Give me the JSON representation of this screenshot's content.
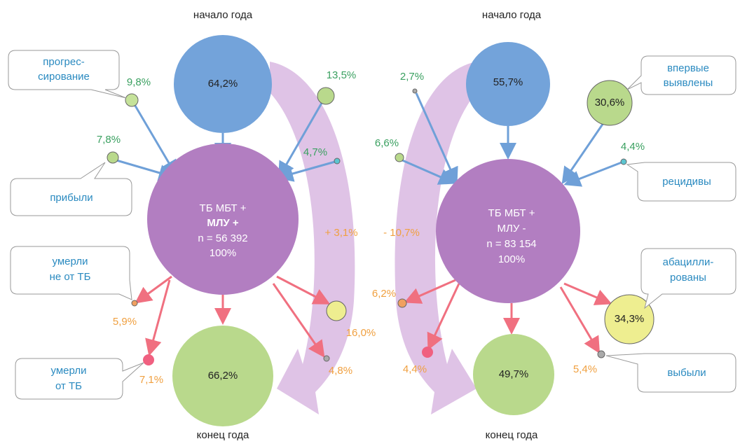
{
  "left": {
    "start_label": "начало года",
    "end_label": "конец года",
    "start": "64,2%",
    "end": "66,2%",
    "center": [
      "ТБ МБТ +",
      "МЛУ +",
      "n = 56 392",
      "100%"
    ],
    "net_change": "+ 3,1%",
    "inflows": [
      {
        "value": "9,8%",
        "label": [
          "прогрес-",
          "сирование"
        ]
      },
      {
        "value": "7,8%",
        "label": [
          "прибыли"
        ]
      },
      {
        "value": "13,5%"
      },
      {
        "value": "4,7%"
      }
    ],
    "outflows": [
      {
        "value": "5,9%",
        "label": [
          "умерли",
          "не от ТБ"
        ]
      },
      {
        "value": "7,1%",
        "label": [
          "умерли",
          "от ТБ"
        ]
      },
      {
        "value": "16,0%"
      },
      {
        "value": "4,8%"
      }
    ]
  },
  "right": {
    "start_label": "начало года",
    "end_label": "конец года",
    "start": "55,7%",
    "end": "49,7%",
    "center": [
      "ТБ МБТ +",
      "МЛУ -",
      "n = 83 154",
      "100%"
    ],
    "net_change": "- 10,7%",
    "inflows": [
      {
        "value": "2,7%"
      },
      {
        "value": "30,6%",
        "label": [
          "впервые",
          "выявлены"
        ]
      },
      {
        "value": "6,6%"
      },
      {
        "value": "4,4%",
        "label": [
          "рецидивы"
        ]
      }
    ],
    "outflows": [
      {
        "value": "6,2%"
      },
      {
        "value": "4,4%"
      },
      {
        "value": "34,3%",
        "label": [
          "абацилли-",
          "рованы"
        ]
      },
      {
        "value": "5,4%",
        "label": [
          "выбыли"
        ]
      }
    ]
  }
}
